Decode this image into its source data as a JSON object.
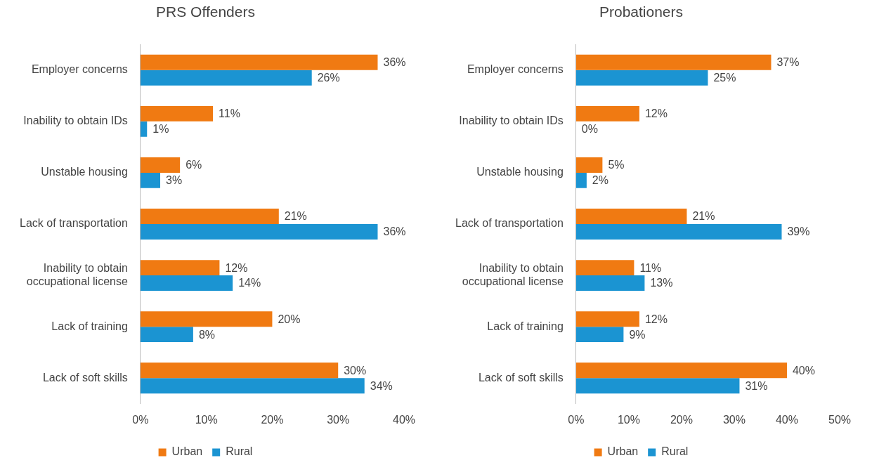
{
  "chart_data": [
    {
      "type": "bar",
      "title": "PRS Offenders",
      "orientation": "horizontal",
      "categories": [
        "Employer concerns",
        "Inability to obtain IDs",
        "Unstable housing",
        "Lack of transportation",
        "Inability to obtain occupational license",
        "Lack of training",
        "Lack of soft skills"
      ],
      "series": [
        {
          "name": "Urban",
          "color": "#f07a12",
          "values": [
            36,
            11,
            6,
            21,
            12,
            20,
            30
          ],
          "value_labels": [
            "36%",
            "11%",
            "6%",
            "21%",
            "12%",
            "20%",
            "30%"
          ]
        },
        {
          "name": "Rural",
          "color": "#1b94d2",
          "values": [
            26,
            1,
            3,
            36,
            14,
            8,
            34
          ],
          "value_labels": [
            "26%",
            "1%",
            "3%",
            "36%",
            "14%",
            "8%",
            "34%"
          ]
        }
      ],
      "xlim": [
        0,
        40
      ],
      "xticks": [
        {
          "value": 0,
          "label": "0%"
        },
        {
          "value": 10,
          "label": "10%"
        },
        {
          "value": 20,
          "label": "20%"
        },
        {
          "value": 30,
          "label": "30%"
        },
        {
          "value": 40,
          "label": "40%"
        }
      ],
      "grid": false,
      "legend": "bottom"
    },
    {
      "type": "bar",
      "title": "Probationers",
      "orientation": "horizontal",
      "categories": [
        "Employer concerns",
        "Inability to obtain IDs",
        "Unstable housing",
        "Lack of transportation",
        "Inability to obtain occupational license",
        "Lack of training",
        "Lack of soft skills"
      ],
      "series": [
        {
          "name": "Urban",
          "color": "#f07a12",
          "values": [
            37,
            12,
            5,
            21,
            11,
            12,
            40
          ],
          "value_labels": [
            "37%",
            "12%",
            "5%",
            "21%",
            "11%",
            "12%",
            "40%"
          ]
        },
        {
          "name": "Rural",
          "color": "#1b94d2",
          "values": [
            25,
            0,
            2,
            39,
            13,
            9,
            31
          ],
          "value_labels": [
            "25%",
            "0%",
            "2%",
            "39%",
            "13%",
            "9%",
            "31%"
          ]
        }
      ],
      "xlim": [
        0,
        50
      ],
      "xticks": [
        {
          "value": 0,
          "label": "0%"
        },
        {
          "value": 10,
          "label": "10%"
        },
        {
          "value": 20,
          "label": "20%"
        },
        {
          "value": 30,
          "label": "30%"
        },
        {
          "value": 40,
          "label": "40%"
        },
        {
          "value": 50,
          "label": "50%"
        }
      ],
      "grid": false,
      "legend": "bottom"
    }
  ]
}
